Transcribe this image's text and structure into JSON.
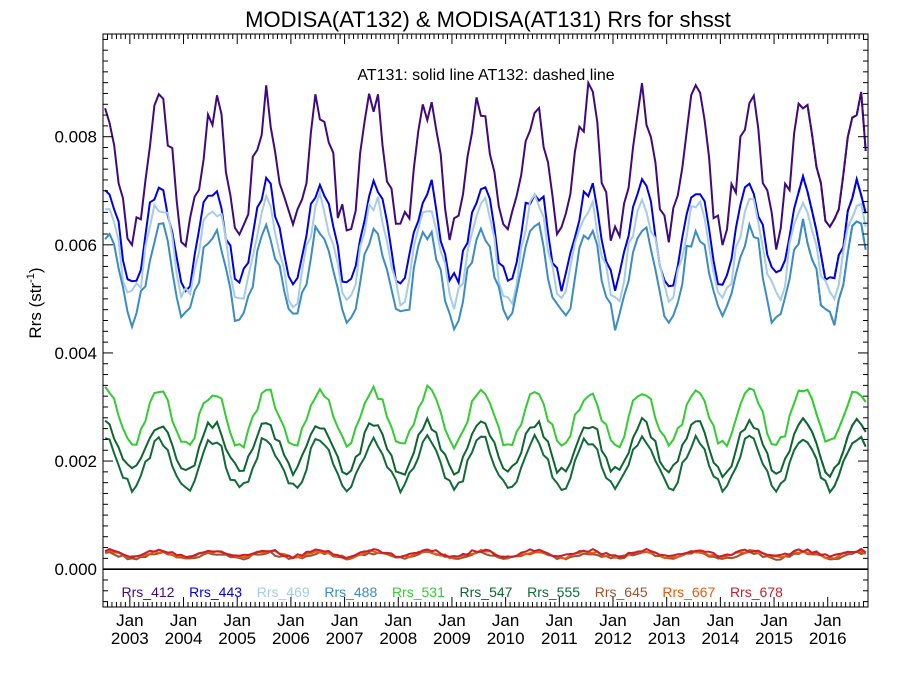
{
  "chart_data": {
    "type": "line",
    "title": "MODISA(AT132) & MODISA(AT131)  Rrs for shsst",
    "subtitle": "AT131: solid line   AT132: dashed line",
    "ylabel_main": "Rrs (str",
    "ylabel_sup": "-1",
    "ylabel_close": ")",
    "xlabel": "",
    "x_range": [
      2002.5,
      2016.75
    ],
    "ylim": [
      -0.0007,
      0.0099
    ],
    "y_ticks": [
      {
        "value": 0.0,
        "label": "0.000"
      },
      {
        "value": 0.002,
        "label": "0.002"
      },
      {
        "value": 0.004,
        "label": "0.004"
      },
      {
        "value": 0.006,
        "label": "0.006"
      },
      {
        "value": 0.008,
        "label": "0.008"
      }
    ],
    "x_ticks": [
      {
        "value": 2003,
        "month": "Jan",
        "year": "2003"
      },
      {
        "value": 2004,
        "month": "Jan",
        "year": "2004"
      },
      {
        "value": 2005,
        "month": "Jan",
        "year": "2005"
      },
      {
        "value": 2006,
        "month": "Jan",
        "year": "2006"
      },
      {
        "value": 2007,
        "month": "Jan",
        "year": "2007"
      },
      {
        "value": 2008,
        "month": "Jan",
        "year": "2008"
      },
      {
        "value": 2009,
        "month": "Jan",
        "year": "2009"
      },
      {
        "value": 2010,
        "month": "Jan",
        "year": "2010"
      },
      {
        "value": 2011,
        "month": "Jan",
        "year": "2011"
      },
      {
        "value": 2012,
        "month": "Jan",
        "year": "2012"
      },
      {
        "value": 2013,
        "month": "Jan",
        "year": "2013"
      },
      {
        "value": 2014,
        "month": "Jan",
        "year": "2014"
      },
      {
        "value": 2015,
        "month": "Jan",
        "year": "2015"
      },
      {
        "value": 2016,
        "month": "Jan",
        "year": "2016"
      }
    ],
    "grid": false,
    "legend_position": "bottom",
    "dashed_from": 2015.4,
    "series": [
      {
        "name": "Rrs_412",
        "color": "#3f0a7f",
        "lo": 0.0062,
        "hi": 0.0086,
        "noise": 0.0004
      },
      {
        "name": "Rrs_443",
        "color": "#0000e6",
        "lo": 0.0053,
        "hi": 0.0071,
        "noise": 0.0002
      },
      {
        "name": "Rrs_469",
        "color": "#a6cce6",
        "lo": 0.005,
        "hi": 0.0068,
        "noise": 0.0002
      },
      {
        "name": "Rrs_488",
        "color": "#3c8cc4",
        "lo": 0.0046,
        "hi": 0.0063,
        "noise": 0.0002
      },
      {
        "name": "Rrs_531",
        "color": "#33cc33",
        "lo": 0.0023,
        "hi": 0.0033,
        "noise": 0.0001
      },
      {
        "name": "Rrs_547",
        "color": "#0d6630",
        "lo": 0.0018,
        "hi": 0.0027,
        "noise": 0.0001
      },
      {
        "name": "Rrs_555",
        "color": "#116b3a",
        "lo": 0.0015,
        "hi": 0.0024,
        "noise": 0.0001
      },
      {
        "name": "Rrs_645",
        "color": "#a0522d",
        "lo": 0.0002,
        "hi": 0.0003,
        "noise": 3e-05
      },
      {
        "name": "Rrs_667",
        "color": "#e85a0c",
        "lo": 0.00022,
        "hi": 0.00033,
        "noise": 3e-05
      },
      {
        "name": "Rrs_678",
        "color": "#c81e2e",
        "lo": 0.00024,
        "hi": 0.00035,
        "noise": 3e-05
      }
    ]
  }
}
